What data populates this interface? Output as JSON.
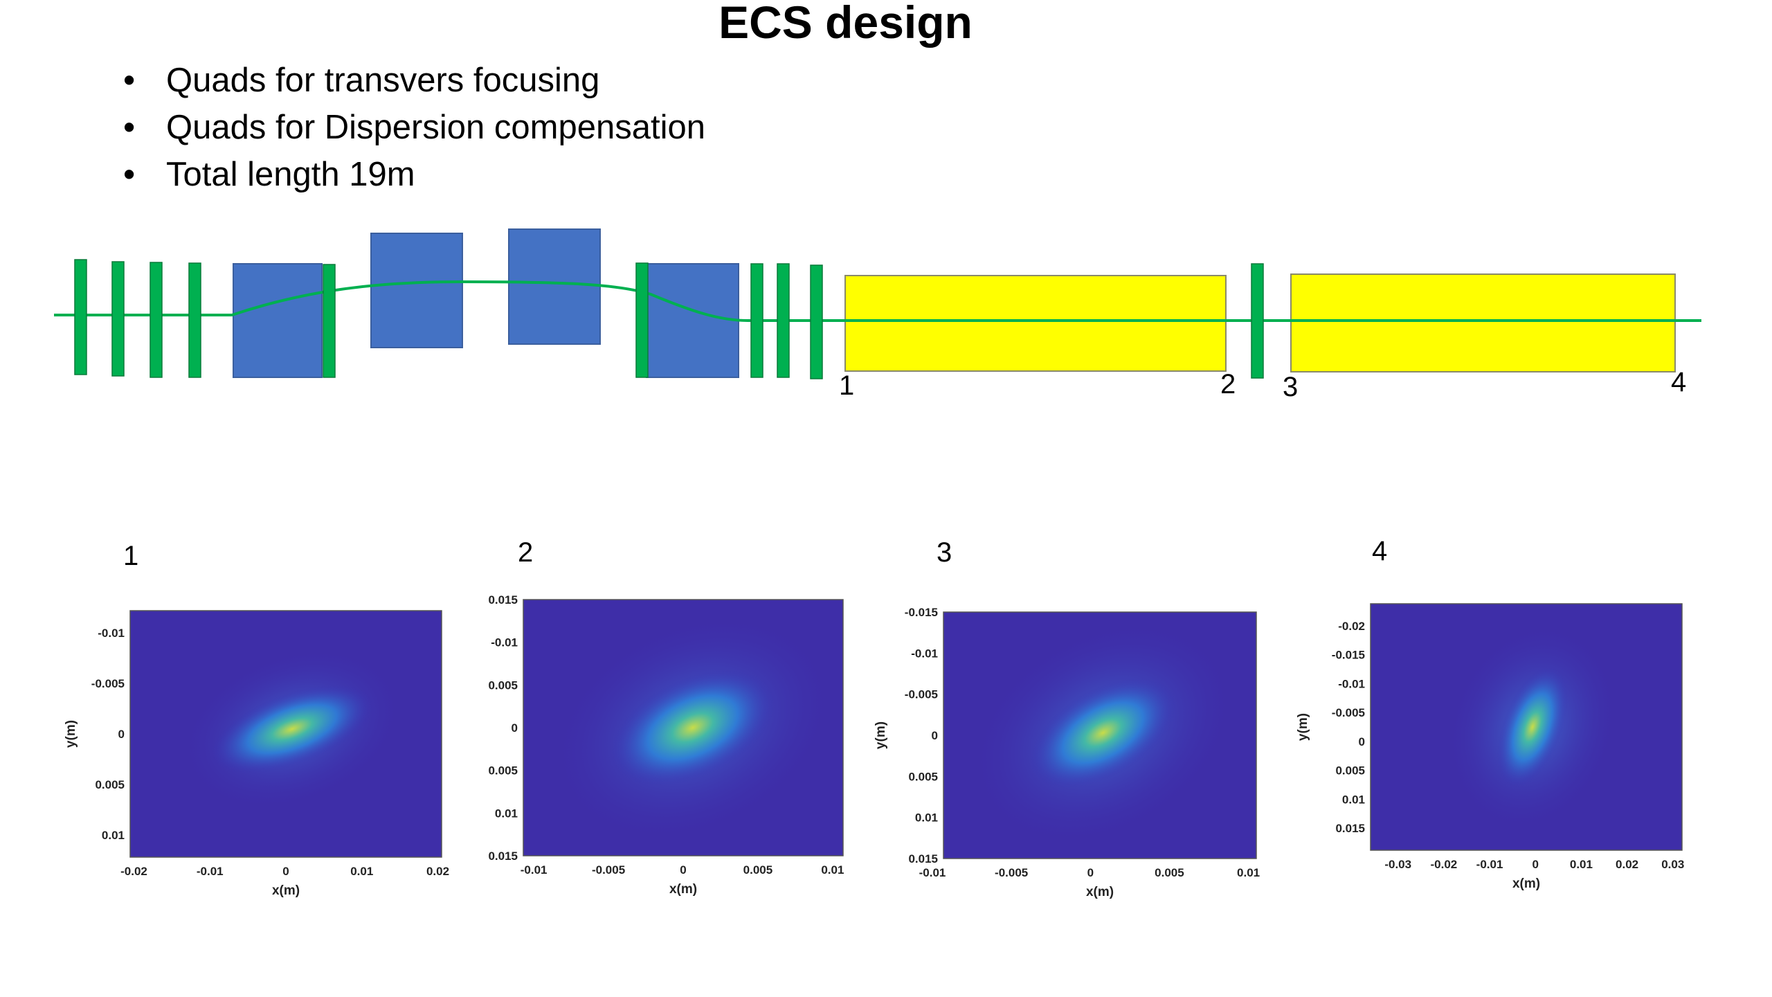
{
  "slide": {
    "title": "ECS design",
    "bullets": [
      "Quads for transvers focusing",
      "Quads for Dispersion compensation",
      "Total length 19m"
    ],
    "bullet_glyph": "•"
  },
  "beamline": {
    "colors": {
      "quad": "#00b050",
      "dipole": "#4472c4",
      "solenoid": "#ffff00",
      "beam": "#00b050"
    },
    "markers": [
      "1",
      "2",
      "3",
      "4"
    ]
  },
  "chart_data": [
    {
      "type": "heatmap",
      "label": "1",
      "xlabel": "x(m)",
      "ylabel": "y(m)",
      "xticks": [
        "-0.02",
        "-0.01",
        "0",
        "0.01",
        "0.02"
      ],
      "yticks": [
        "-0.01",
        "-0.005",
        "0",
        "0.005",
        "0.01"
      ],
      "xlim": [
        -0.0205,
        0.0205
      ],
      "ylim": [
        -0.013,
        0.013
      ]
    },
    {
      "type": "heatmap",
      "label": "2",
      "xlabel": "x(m)",
      "ylabel": "",
      "xticks": [
        "-0.01",
        "-0.005",
        "0",
        "0.005",
        "0.01"
      ],
      "yticks": [
        "0.015",
        "-0.01",
        "0.005",
        "0",
        "0.005",
        "0.01",
        "0.015"
      ],
      "xlim": [
        -0.0107,
        0.0107
      ],
      "ylim": [
        -0.015,
        0.015
      ]
    },
    {
      "type": "heatmap",
      "label": "3",
      "xlabel": "x(m)",
      "ylabel": "y(m)",
      "xticks": [
        "-0.01",
        "-0.005",
        "0",
        "0.005",
        "0.01"
      ],
      "yticks": [
        "-0.015",
        "-0.01",
        "-0.005",
        "0",
        "0.005",
        "0.01",
        "0.015"
      ],
      "xlim": [
        -0.0093,
        0.0105
      ],
      "ylim": [
        -0.015,
        0.015
      ]
    },
    {
      "type": "heatmap",
      "label": "4",
      "xlabel": "x(m)",
      "ylabel": "y(m)",
      "xticks": [
        "-0.03",
        "-0.02",
        "-0.01",
        "0",
        "0.01",
        "0.02",
        "0.03"
      ],
      "yticks": [
        "-0.02",
        "-0.015",
        "-0.01",
        "-0.005",
        "0",
        "0.005",
        "0.01",
        "0.015"
      ],
      "xlim": [
        -0.036,
        0.032
      ],
      "ylim": [
        -0.0215,
        0.0195
      ]
    }
  ]
}
